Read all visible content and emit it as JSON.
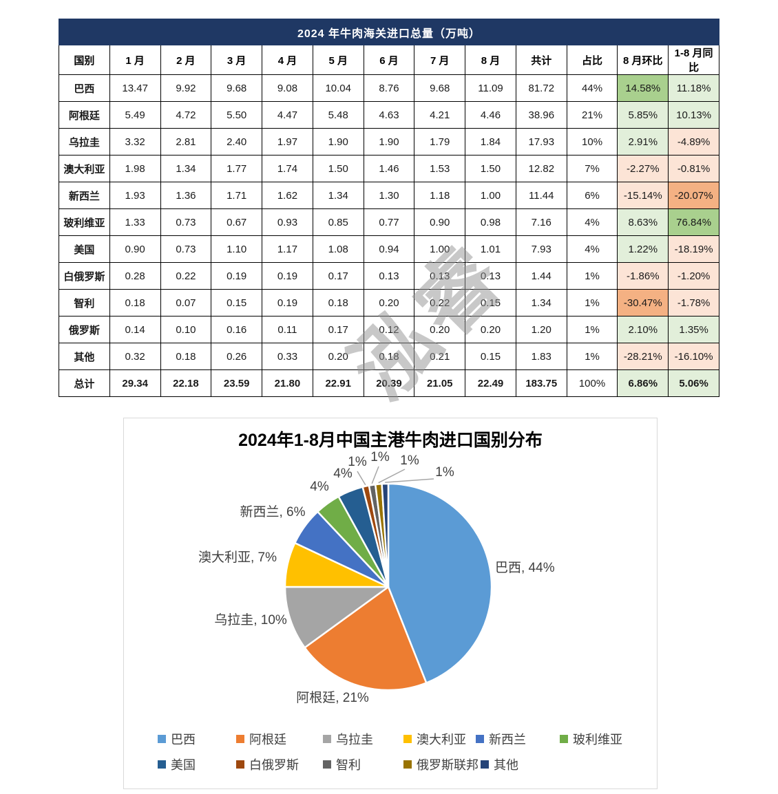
{
  "watermark": {
    "text": "泓睿"
  },
  "table": {
    "title": "2024 年牛肉海关进口总量（万吨）",
    "header_bg": "#1F3864",
    "columns": [
      "国别",
      "1 月",
      "2 月",
      "3 月",
      "4 月",
      "5 月",
      "6 月",
      "7 月",
      "8 月",
      "共计",
      "占比",
      "8 月环比",
      "1-8 月同比"
    ],
    "highlight_colors": {
      "green_light": "#E2EFDA",
      "green_strong": "#A9D08E",
      "orange_light": "#FCE4D6",
      "orange_strong": "#F4B183"
    },
    "rows": [
      {
        "name": "巴西",
        "values": [
          "13.47",
          "9.92",
          "9.68",
          "9.08",
          "10.04",
          "8.76",
          "9.68",
          "11.09"
        ],
        "total": "81.72",
        "share": "44%",
        "mom": "14.58%",
        "yoy": "11.18%",
        "mom_class": "green_strong",
        "yoy_class": "green_light",
        "bold": false
      },
      {
        "name": "阿根廷",
        "values": [
          "5.49",
          "4.72",
          "5.50",
          "4.47",
          "5.48",
          "4.63",
          "4.21",
          "4.46"
        ],
        "total": "38.96",
        "share": "21%",
        "mom": "5.85%",
        "yoy": "10.13%",
        "mom_class": "green_light",
        "yoy_class": "green_light",
        "bold": false
      },
      {
        "name": "乌拉圭",
        "values": [
          "3.32",
          "2.81",
          "2.40",
          "1.97",
          "1.90",
          "1.90",
          "1.79",
          "1.84"
        ],
        "total": "17.93",
        "share": "10%",
        "mom": "2.91%",
        "yoy": "-4.89%",
        "mom_class": "green_light",
        "yoy_class": "orange_light",
        "bold": false
      },
      {
        "name": "澳大利亚",
        "values": [
          "1.98",
          "1.34",
          "1.77",
          "1.74",
          "1.50",
          "1.46",
          "1.53",
          "1.50"
        ],
        "total": "12.82",
        "share": "7%",
        "mom": "-2.27%",
        "yoy": "-0.81%",
        "mom_class": "orange_light",
        "yoy_class": "orange_light",
        "bold": false
      },
      {
        "name": "新西兰",
        "values": [
          "1.93",
          "1.36",
          "1.71",
          "1.62",
          "1.34",
          "1.30",
          "1.18",
          "1.00"
        ],
        "total": "11.44",
        "share": "6%",
        "mom": "-15.14%",
        "yoy": "-20.07%",
        "mom_class": "orange_light",
        "yoy_class": "orange_strong",
        "bold": false
      },
      {
        "name": "玻利维亚",
        "values": [
          "1.33",
          "0.73",
          "0.67",
          "0.93",
          "0.85",
          "0.77",
          "0.90",
          "0.98"
        ],
        "total": "7.16",
        "share": "4%",
        "mom": "8.63%",
        "yoy": "76.84%",
        "mom_class": "green_light",
        "yoy_class": "green_strong",
        "bold": false
      },
      {
        "name": "美国",
        "values": [
          "0.90",
          "0.73",
          "1.10",
          "1.17",
          "1.08",
          "0.94",
          "1.00",
          "1.01"
        ],
        "total": "7.93",
        "share": "4%",
        "mom": "1.22%",
        "yoy": "-18.19%",
        "mom_class": "green_light",
        "yoy_class": "orange_light",
        "bold": false
      },
      {
        "name": "白俄罗斯",
        "values": [
          "0.28",
          "0.22",
          "0.19",
          "0.19",
          "0.17",
          "0.13",
          "0.13",
          "0.13"
        ],
        "total": "1.44",
        "share": "1%",
        "mom": "-1.86%",
        "yoy": "-1.20%",
        "mom_class": "orange_light",
        "yoy_class": "orange_light",
        "bold": false
      },
      {
        "name": "智利",
        "values": [
          "0.18",
          "0.07",
          "0.15",
          "0.19",
          "0.18",
          "0.20",
          "0.22",
          "0.15"
        ],
        "total": "1.34",
        "share": "1%",
        "mom": "-30.47%",
        "yoy": "-1.78%",
        "mom_class": "orange_strong",
        "yoy_class": "orange_light",
        "bold": false
      },
      {
        "name": "俄罗斯",
        "values": [
          "0.14",
          "0.10",
          "0.16",
          "0.11",
          "0.17",
          "0.12",
          "0.20",
          "0.20"
        ],
        "total": "1.20",
        "share": "1%",
        "mom": "2.10%",
        "yoy": "1.35%",
        "mom_class": "green_light",
        "yoy_class": "green_light",
        "bold": false
      },
      {
        "name": "其他",
        "values": [
          "0.32",
          "0.18",
          "0.26",
          "0.33",
          "0.20",
          "0.18",
          "0.21",
          "0.15"
        ],
        "total": "1.83",
        "share": "1%",
        "mom": "-28.21%",
        "yoy": "-16.10%",
        "mom_class": "orange_light",
        "yoy_class": "orange_light",
        "bold": false
      },
      {
        "name": "总计",
        "values": [
          "29.34",
          "22.18",
          "23.59",
          "21.80",
          "22.91",
          "20.39",
          "21.05",
          "22.49"
        ],
        "total": "183.75",
        "share": "100%",
        "mom": "6.86%",
        "yoy": "5.06%",
        "mom_class": "green_light",
        "yoy_class": "green_light",
        "bold": true
      }
    ]
  },
  "chart_data": {
    "type": "pie",
    "title": "2024年1-8月中国主港牛肉进口国别分布",
    "start_angle_deg": 0,
    "direction": "clockwise",
    "legend_position": "bottom",
    "slices": [
      {
        "name": "巴西",
        "pct": 44,
        "color": "#5B9BD5",
        "label": "巴西, 44%"
      },
      {
        "name": "阿根廷",
        "pct": 21,
        "color": "#ED7D31",
        "label": "阿根廷, 21%"
      },
      {
        "name": "乌拉圭",
        "pct": 10,
        "color": "#A5A5A5",
        "label": "乌拉圭, 10%"
      },
      {
        "name": "澳大利亚",
        "pct": 7,
        "color": "#FFC000",
        "label": "澳大利亚, 7%"
      },
      {
        "name": "新西兰",
        "pct": 6,
        "color": "#4472C4",
        "label": "新西兰, 6%"
      },
      {
        "name": "玻利维亚",
        "pct": 4,
        "color": "#70AD47",
        "label": "4%"
      },
      {
        "name": "美国",
        "pct": 4,
        "color": "#255E91",
        "label": "4%"
      },
      {
        "name": "白俄罗斯",
        "pct": 1,
        "color": "#9E480E",
        "label": "1%"
      },
      {
        "name": "智利",
        "pct": 1,
        "color": "#636363",
        "label": "1%"
      },
      {
        "name": "俄罗斯联邦",
        "pct": 1,
        "color": "#997300",
        "label": "1%"
      },
      {
        "name": "其他",
        "pct": 1,
        "color": "#264478",
        "label": "1%"
      }
    ]
  }
}
